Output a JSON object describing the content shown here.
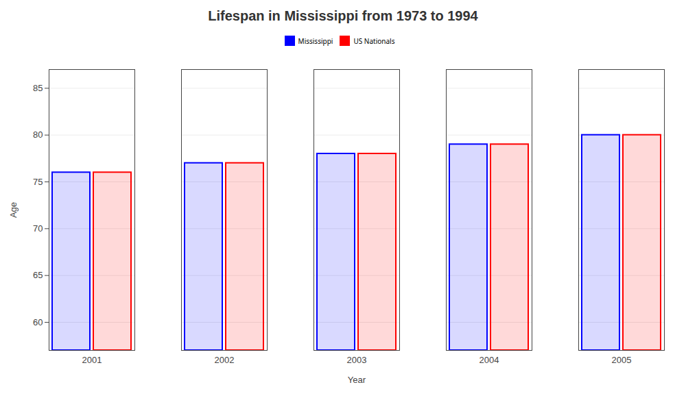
{
  "chart_data": {
    "type": "bar",
    "title": "Lifespan in Mississippi from 1973 to 1994",
    "xlabel": "Year",
    "ylabel": "Age",
    "categories": [
      "2001",
      "2002",
      "2003",
      "2004",
      "2005"
    ],
    "series": [
      {
        "name": "Mississippi",
        "color": "#0000ff",
        "values": [
          76,
          77,
          78,
          79,
          80
        ]
      },
      {
        "name": "US Nationals",
        "color": "#ff0000",
        "values": [
          76,
          77,
          78,
          79,
          80
        ]
      }
    ],
    "ylim": [
      57,
      87
    ],
    "yticks": [
      60,
      65,
      70,
      75,
      80,
      85
    ],
    "grid": true,
    "legend": "top"
  }
}
